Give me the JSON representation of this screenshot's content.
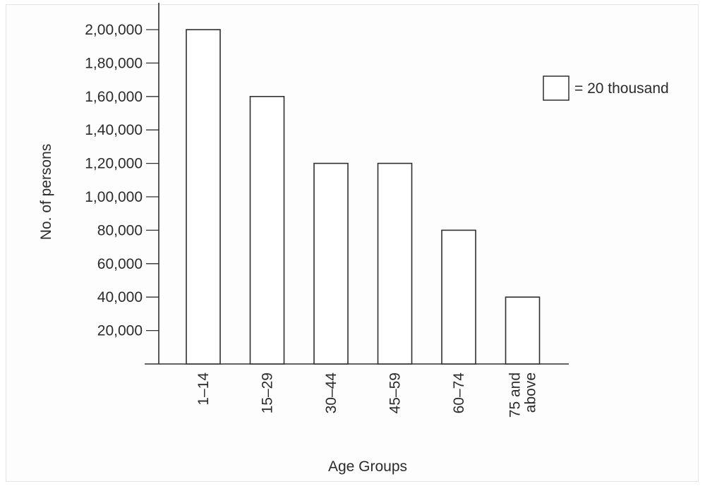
{
  "chart_data": {
    "type": "bar",
    "categories": [
      "1–14",
      "15–29",
      "30–44",
      "45–59",
      "60–74",
      "75 and above"
    ],
    "values": [
      200000,
      160000,
      120000,
      120000,
      80000,
      40000
    ],
    "ylim": [
      0,
      200000
    ],
    "y_ticks": [
      {
        "value": 20000,
        "label": "20,000"
      },
      {
        "value": 40000,
        "label": "40,000"
      },
      {
        "value": 60000,
        "label": "60,000"
      },
      {
        "value": 80000,
        "label": "80,000"
      },
      {
        "value": 100000,
        "label": "1,00,000"
      },
      {
        "value": 120000,
        "label": "1,20,000"
      },
      {
        "value": 140000,
        "label": "1,40,000"
      },
      {
        "value": 160000,
        "label": "1,60,000"
      },
      {
        "value": 180000,
        "label": "1,80,000"
      },
      {
        "value": 200000,
        "label": "2,00,000"
      }
    ],
    "xlabel": "Age Groups",
    "ylabel": "No. of persons",
    "legend": {
      "label": "= 20 thousand",
      "placement": "top-right"
    },
    "grid": false,
    "colors": {
      "bar_fill": "#ffffff",
      "bar_stroke": "#2f2f2f",
      "axis": "#2f2f2f"
    }
  }
}
